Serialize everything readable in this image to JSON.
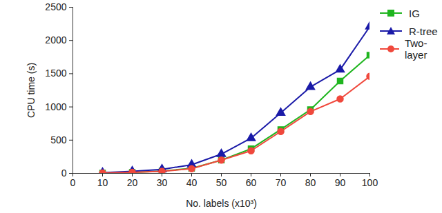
{
  "chart_data": {
    "type": "line",
    "x_label": "No. labels (x10³)",
    "y_label": "CPU time (s)",
    "x": [
      10,
      20,
      30,
      40,
      50,
      60,
      70,
      80,
      90,
      100
    ],
    "series": [
      {
        "name": "IG",
        "color": "#1fb51f",
        "marker": "square",
        "values": [
          5,
          15,
          35,
          75,
          200,
          370,
          660,
          960,
          1390,
          1780
        ]
      },
      {
        "name": "R-tree",
        "color": "#1a1aa8",
        "marker": "triangle",
        "values": [
          10,
          30,
          60,
          130,
          290,
          530,
          910,
          1300,
          1560,
          2210
        ]
      },
      {
        "name": "Two-layer",
        "color": "#f0483c",
        "marker": "circle",
        "values": [
          5,
          15,
          30,
          70,
          200,
          340,
          630,
          930,
          1120,
          1460
        ]
      }
    ],
    "xlim": [
      0,
      100
    ],
    "xticks": [
      0,
      10,
      20,
      30,
      40,
      50,
      60,
      70,
      80,
      90,
      100
    ],
    "ylim": [
      0,
      2500
    ],
    "yticks": [
      0,
      500,
      1000,
      1500,
      2000,
      2500
    ],
    "grid": false,
    "legend": "right"
  }
}
